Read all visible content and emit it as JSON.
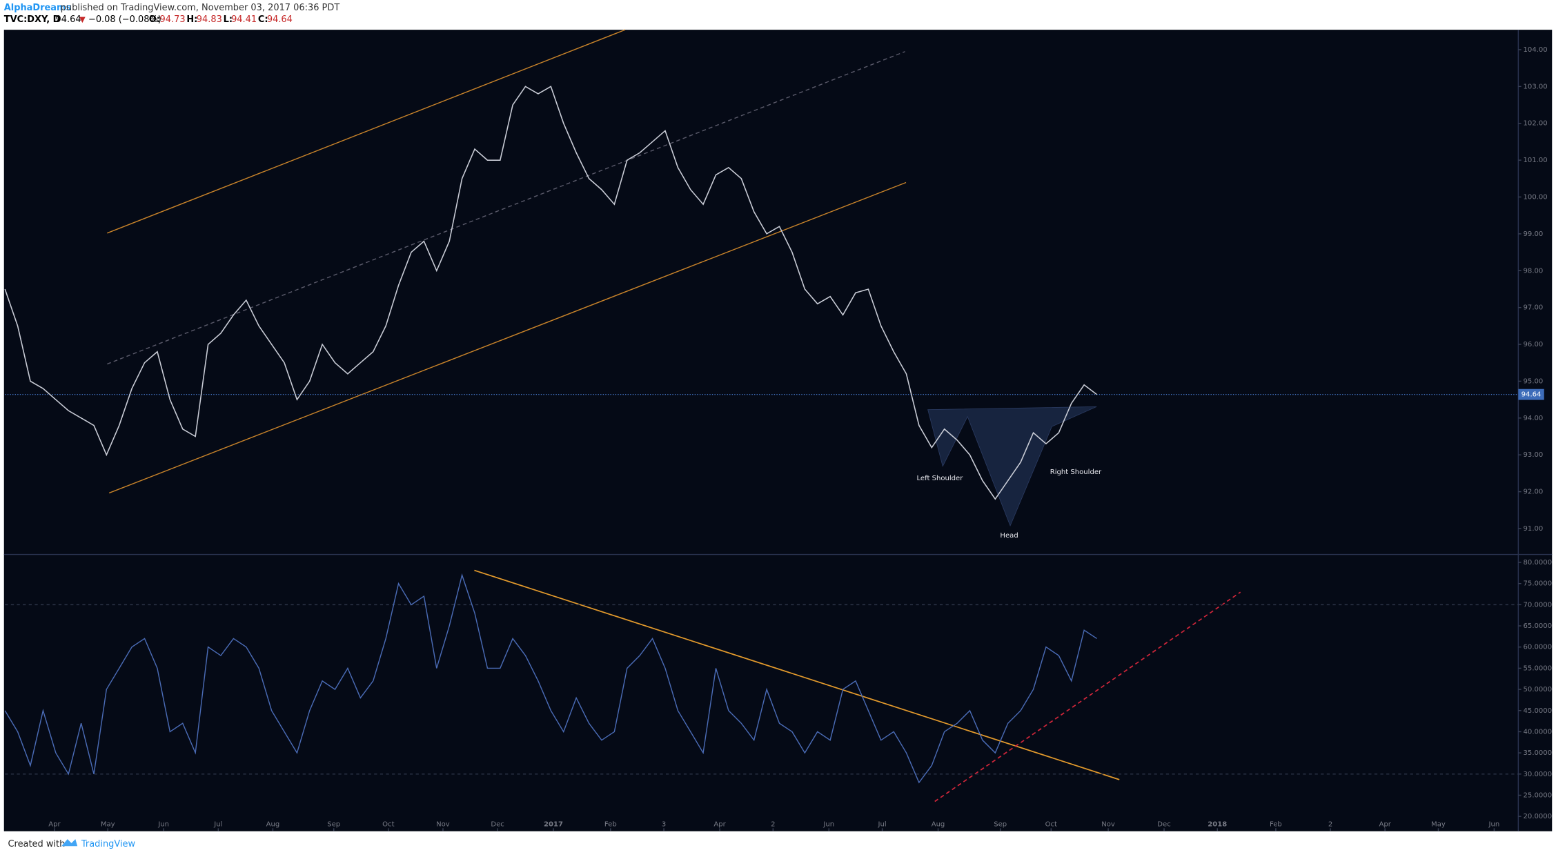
{
  "header": {
    "author": "AlphaDreams",
    "published": "published on TradingView.com, November 03, 2017 06:36 PDT"
  },
  "legend": {
    "symbol": "TVC:DXY, D",
    "last": "94.64",
    "change": "−0.08 (−0.08%)",
    "open_label": "O:",
    "open": "94.73",
    "high_label": "H:",
    "high": "94.83",
    "low_label": "L:",
    "low": "94.41",
    "close_label": "C:",
    "close": "94.64"
  },
  "chart_data": [
    {
      "type": "line",
      "color": "#c9ccd6",
      "values": [
        97.5,
        96.5,
        95.0,
        94.8,
        94.5,
        94.2,
        94.0,
        93.8,
        93.0,
        93.8,
        94.8,
        95.5,
        95.8,
        94.5,
        93.7,
        93.5,
        96.0,
        96.3,
        96.8,
        97.2,
        96.5,
        96.0,
        95.5,
        94.5,
        95.0,
        96.0,
        95.5,
        95.2,
        95.5,
        95.8,
        96.5,
        97.6,
        98.5,
        98.8,
        98.0,
        98.8,
        100.5,
        101.3,
        101.0,
        101.0,
        102.5,
        103.0,
        102.8,
        103.0,
        102.0,
        101.2,
        100.5,
        100.2,
        99.8,
        101.0,
        101.2,
        101.5,
        101.8,
        100.8,
        100.2,
        99.8,
        100.6,
        100.8,
        100.5,
        99.6,
        99.0,
        99.2,
        98.5,
        97.5,
        97.1,
        97.3,
        96.8,
        97.4,
        97.5,
        96.5,
        95.8,
        95.2,
        93.8,
        93.2,
        93.7,
        93.4,
        93.0,
        92.3,
        91.8,
        92.3,
        92.8,
        93.6,
        93.3,
        93.6,
        94.4,
        94.9,
        94.64
      ],
      "xlim": [
        0,
        119.2
      ],
      "ylim": [
        90.35,
        104.54
      ],
      "yticks": [
        {
          "value": 91,
          "label": "91.00"
        },
        {
          "value": 92,
          "label": "92.00"
        },
        {
          "value": 93,
          "label": "93.00"
        },
        {
          "value": 94,
          "label": "94.00"
        },
        {
          "value": 95,
          "label": "95.00"
        },
        {
          "value": 96,
          "label": "96.00"
        },
        {
          "value": 97,
          "label": "97.00"
        },
        {
          "value": 98,
          "label": "98.00"
        },
        {
          "value": 99,
          "label": "99.00"
        },
        {
          "value": 100,
          "label": "100.00"
        },
        {
          "value": 101,
          "label": "101.00"
        },
        {
          "value": 102,
          "label": "102.00"
        },
        {
          "value": 103,
          "label": "103.00"
        },
        {
          "value": 104,
          "label": "104.00"
        }
      ],
      "last_price": 94.64,
      "annotations": [
        "Left Shoulder",
        "Right Shoulder",
        "Head"
      ]
    },
    {
      "type": "line",
      "color": "#4a6bb5",
      "values": [
        45,
        40,
        32,
        45,
        35,
        30,
        42,
        30,
        50,
        55,
        60,
        62,
        55,
        40,
        42,
        35,
        60,
        58,
        62,
        60,
        55,
        45,
        40,
        35,
        45,
        52,
        50,
        55,
        48,
        52,
        62,
        75,
        70,
        72,
        55,
        65,
        77,
        68,
        55,
        55,
        62,
        58,
        52,
        45,
        40,
        48,
        42,
        38,
        40,
        55,
        58,
        62,
        55,
        45,
        40,
        35,
        55,
        45,
        42,
        38,
        50,
        42,
        40,
        35,
        40,
        38,
        50,
        52,
        45,
        38,
        40,
        35,
        28,
        32,
        40,
        42,
        45,
        38,
        35,
        42,
        45,
        50,
        60,
        58,
        52,
        64,
        62
      ],
      "xlim": [
        0,
        119.2
      ],
      "ylim": [
        16.5,
        81.4
      ],
      "yticks": [
        {
          "value": 20,
          "label": "20.0000"
        },
        {
          "value": 25,
          "label": "25.0000"
        },
        {
          "value": 30,
          "label": "30.0000"
        },
        {
          "value": 35,
          "label": "35.0000"
        },
        {
          "value": 40,
          "label": "40.0000"
        },
        {
          "value": 45,
          "label": "45.0000"
        },
        {
          "value": 50,
          "label": "50.0000"
        },
        {
          "value": 55,
          "label": "55.0000"
        },
        {
          "value": 60,
          "label": "60.0000"
        },
        {
          "value": 65,
          "label": "65.0000"
        },
        {
          "value": 70,
          "label": "70.0000"
        },
        {
          "value": 75,
          "label": "75.0000"
        },
        {
          "value": 80,
          "label": "80.0000"
        }
      ],
      "levels": [
        70,
        30
      ],
      "xticks": [
        {
          "value": 3.9,
          "label": "Apr"
        },
        {
          "value": 8.1,
          "label": "May"
        },
        {
          "value": 12.5,
          "label": "Jun"
        },
        {
          "value": 16.8,
          "label": "Jul"
        },
        {
          "value": 21.1,
          "label": "Aug"
        },
        {
          "value": 25.9,
          "label": "Sep"
        },
        {
          "value": 30.2,
          "label": "Oct"
        },
        {
          "value": 34.5,
          "label": "Nov"
        },
        {
          "value": 38.8,
          "label": "Dec"
        },
        {
          "value": 43.2,
          "label": "2017"
        },
        {
          "value": 47.7,
          "label": "Feb"
        },
        {
          "value": 51.9,
          "label": "3"
        },
        {
          "value": 56.3,
          "label": "Apr"
        },
        {
          "value": 60.5,
          "label": "2"
        },
        {
          "value": 64.9,
          "label": "Jun"
        },
        {
          "value": 69.1,
          "label": "Jul"
        },
        {
          "value": 73.5,
          "label": "Aug"
        },
        {
          "value": 78.4,
          "label": "Sep"
        },
        {
          "value": 82.4,
          "label": "Oct"
        },
        {
          "value": 86.9,
          "label": "Nov"
        },
        {
          "value": 91.3,
          "label": "Dec"
        },
        {
          "value": 95.5,
          "label": "2018"
        },
        {
          "value": 100.1,
          "label": "Feb"
        },
        {
          "value": 104.4,
          "label": "2"
        },
        {
          "value": 108.7,
          "label": "Apr"
        },
        {
          "value": 112.9,
          "label": "May"
        },
        {
          "value": 117.3,
          "label": "Jun"
        }
      ]
    }
  ],
  "footer": {
    "created": "Created with",
    "brand": "TradingView"
  }
}
